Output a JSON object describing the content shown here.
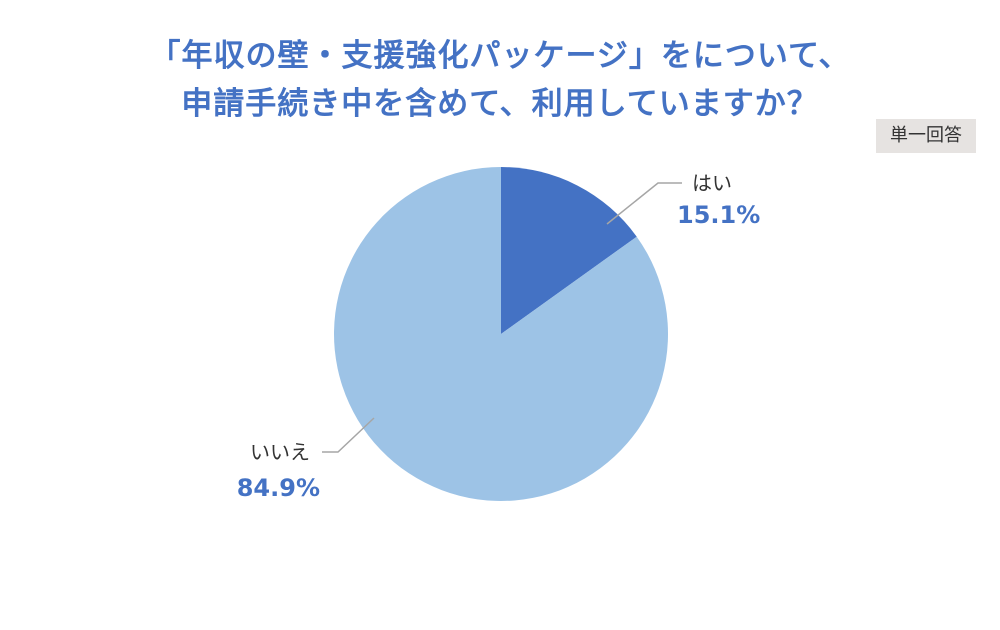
{
  "title_line1": "「年収の壁・支援強化パッケージ」をについて、",
  "title_line2": "申請手続き中を含めて、利用していますか？",
  "answer_type": "単一回答",
  "chart_data": {
    "type": "pie",
    "slices": [
      {
        "label": "はい",
        "value": 15.1,
        "value_label": "15.1%",
        "color": "#4472c4"
      },
      {
        "label": "いいえ",
        "value": 84.9,
        "value_label": "84.9%",
        "color": "#9dc3e6"
      }
    ],
    "start_angle": "12 o'clock",
    "direction": "clockwise",
    "label_color": "#4472c4",
    "leader_line_color": "#a6a6a6"
  }
}
